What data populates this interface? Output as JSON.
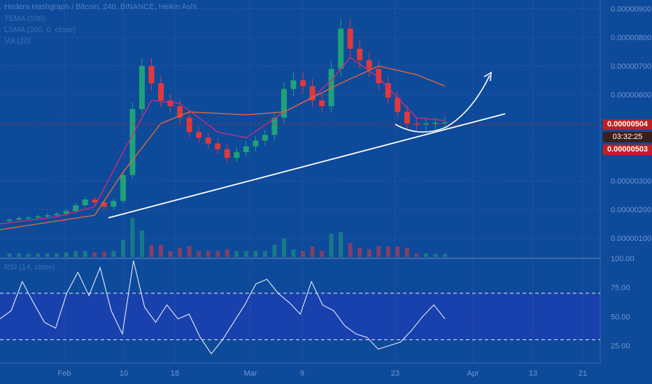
{
  "header": {
    "symbol_line": "Hedera Hashgraph / Bitcoin, 240, BINANCE, Heikin Ashi",
    "indicators": [
      "TEMA (100)",
      "LSMA (200, 0, close)",
      "Vol (20)"
    ]
  },
  "price_scale": {
    "ticks": [
      "0.00000900",
      "0.00000800",
      "0.00000700",
      "0.00000600",
      "0.00000300",
      "0.00000200",
      "0.00000100"
    ],
    "current_price": "0.00000504",
    "countdown": "03:32:25",
    "prev_close": "0.00000503"
  },
  "rsi_panel": {
    "label": "RSI (14, close)",
    "ticks": [
      "100.00",
      "75.00",
      "50.00",
      "25.00"
    ],
    "upper_band": 70,
    "lower_band": 30
  },
  "time_axis": {
    "labels": [
      "Feb",
      "10",
      "18",
      "Mar",
      "9",
      "23",
      "Apr",
      "13",
      "21"
    ]
  },
  "colors": {
    "background": "#0e4a9a",
    "grid": "#27599f",
    "up_candle": "#1fa27a",
    "down_candle": "#e0393c",
    "tema": "#d02a7a",
    "lsma": "#e0683a",
    "trendline": "#ffffff",
    "rsi_band_fill": "#1b3fb0",
    "badge": "#c0201f"
  },
  "chart_data": [
    {
      "type": "line",
      "title": "Hedera Hashgraph / Bitcoin, 240, BINANCE, Heikin Ashi",
      "xlabel": "",
      "ylabel": "",
      "x_labels": [
        "Feb",
        "10",
        "18",
        "Mar",
        "9",
        "23",
        "Apr",
        "13",
        "21"
      ],
      "ylim": [
        3e-07,
        9.3e-06
      ],
      "series": [
        {
          "name": "Price",
          "points": [
            [
              0,
              1.6e-06
            ],
            [
              1,
              1.65e-06
            ],
            [
              2,
              1.7e-06
            ],
            [
              3,
              1.72e-06
            ],
            [
              4,
              1.76e-06
            ],
            [
              5,
              1.8e-06
            ],
            [
              6,
              1.85e-06
            ],
            [
              7,
              1.95e-06
            ],
            [
              8,
              2.15e-06
            ],
            [
              9,
              2.35e-06
            ],
            [
              10,
              2.25e-06
            ],
            [
              11,
              2.1e-06
            ],
            [
              12,
              2.3e-06
            ],
            [
              13,
              3.2e-06
            ],
            [
              14,
              5.5e-06
            ],
            [
              15,
              7e-06
            ],
            [
              16,
              6.4e-06
            ],
            [
              17,
              5.8e-06
            ],
            [
              18,
              5.6e-06
            ],
            [
              19,
              5.2e-06
            ],
            [
              20,
              4.7e-06
            ],
            [
              21,
              4.5e-06
            ],
            [
              22,
              4.3e-06
            ],
            [
              23,
              4.1e-06
            ],
            [
              24,
              3.8e-06
            ],
            [
              25,
              4e-06
            ],
            [
              26,
              4.2e-06
            ],
            [
              27,
              4.4e-06
            ],
            [
              28,
              4.6e-06
            ],
            [
              29,
              5.2e-06
            ],
            [
              30,
              6.2e-06
            ],
            [
              31,
              6.5e-06
            ],
            [
              32,
              6.3e-06
            ],
            [
              33,
              5.8e-06
            ],
            [
              34,
              5.6e-06
            ],
            [
              35,
              6.9e-06
            ],
            [
              36,
              8.3e-06
            ],
            [
              37,
              7.6e-06
            ],
            [
              38,
              7.2e-06
            ],
            [
              39,
              6.9e-06
            ],
            [
              40,
              6.4e-06
            ],
            [
              41,
              5.9e-06
            ],
            [
              42,
              5.4e-06
            ],
            [
              43,
              5e-06
            ],
            [
              44,
              4.95e-06
            ],
            [
              45,
              5e-06
            ],
            [
              46,
              5.02e-06
            ],
            [
              47,
              5.04e-06
            ]
          ]
        },
        {
          "name": "TEMA (100)",
          "points": [
            [
              0,
              1.5e-06
            ],
            [
              6,
              1.75e-06
            ],
            [
              10,
              2.1e-06
            ],
            [
              13,
              4e-06
            ],
            [
              16,
              5.8e-06
            ],
            [
              19,
              5.7e-06
            ],
            [
              23,
              4.7e-06
            ],
            [
              26,
              4.5e-06
            ],
            [
              30,
              5.4e-06
            ],
            [
              33,
              5.9e-06
            ],
            [
              35,
              6.5e-06
            ],
            [
              37,
              7.3e-06
            ],
            [
              40,
              6.6e-06
            ],
            [
              44,
              5.2e-06
            ],
            [
              47,
              5.1e-06
            ]
          ]
        },
        {
          "name": "LSMA (200, 0, close)",
          "points": [
            [
              0,
              1.3e-06
            ],
            [
              10,
              1.8e-06
            ],
            [
              13,
              3.3e-06
            ],
            [
              17,
              5e-06
            ],
            [
              20,
              5.4e-06
            ],
            [
              26,
              5.3e-06
            ],
            [
              30,
              5.4e-06
            ],
            [
              36,
              6.4e-06
            ],
            [
              40,
              7e-06
            ],
            [
              44,
              6.7e-06
            ],
            [
              47,
              6.3e-06
            ]
          ]
        }
      ]
    },
    {
      "type": "line",
      "title": "RSI (14, close)",
      "xlabel": "",
      "ylabel": "",
      "ylim": [
        10,
        100
      ],
      "series": [
        {
          "name": "RSI (14, close)",
          "values": [
            48,
            55,
            80,
            62,
            45,
            40,
            70,
            88,
            68,
            92,
            55,
            35,
            98,
            58,
            45,
            60,
            48,
            52,
            32,
            18,
            30,
            45,
            60,
            78,
            82,
            70,
            62,
            52,
            80,
            60,
            55,
            42,
            35,
            32,
            22,
            25,
            28,
            38,
            50,
            60,
            48
          ]
        }
      ]
    }
  ]
}
